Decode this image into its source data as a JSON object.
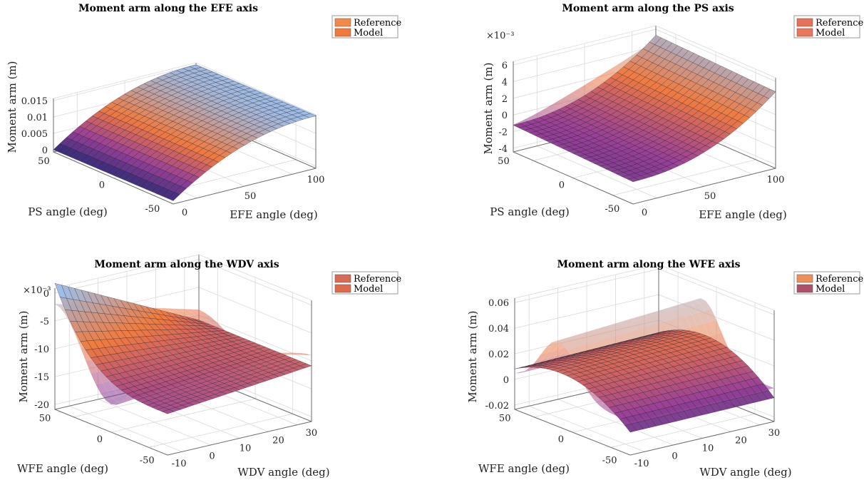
{
  "chart_data": [
    {
      "type": "surface",
      "title": "Moment arm along the EFE axis",
      "xlabel": "EFE angle (deg)",
      "ylabel": "PS angle (deg)",
      "zlabel": "Moment arm (m)",
      "x_ticks": [
        "0",
        "50",
        "100"
      ],
      "y_ticks": [
        "-50",
        "0",
        "50"
      ],
      "z_ticks": [
        "0",
        "0.005",
        "0.01",
        "0.015"
      ],
      "z_exponent": "",
      "xlim": [
        0,
        110
      ],
      "ylim": [
        -60,
        60
      ],
      "zlim": [
        0,
        0.016
      ],
      "grid": true,
      "legend": "top-right",
      "legend_entries": [
        "Reference",
        "Model"
      ],
      "series": [
        {
          "name": "Reference",
          "color": "#f08a4b",
          "shape": "efe_ref"
        },
        {
          "name": "Model",
          "color": "#ee7a3c",
          "shape": "efe_model"
        }
      ]
    },
    {
      "type": "surface",
      "title": "Moment arm along the PS axis",
      "xlabel": "EFE angle (deg)",
      "ylabel": "PS angle (deg)",
      "zlabel": "Moment arm (m)",
      "x_ticks": [
        "0",
        "50",
        "100"
      ],
      "y_ticks": [
        "-50",
        "0",
        "50"
      ],
      "z_ticks": [
        "-4",
        "-2",
        "0",
        "2",
        "4",
        "6"
      ],
      "z_exponent": "×10⁻³",
      "xlim": [
        0,
        110
      ],
      "ylim": [
        -60,
        60
      ],
      "zlim": [
        -4,
        7
      ],
      "grid": true,
      "legend": "top-right",
      "legend_entries": [
        "Reference",
        "Model"
      ],
      "series": [
        {
          "name": "Reference",
          "color": "#e5735c",
          "shape": "ps_ref"
        },
        {
          "name": "Model",
          "color": "#e8775e",
          "shape": "ps_model"
        }
      ]
    },
    {
      "type": "surface",
      "title": "Moment arm along the WDV axis",
      "xlabel": "WDV angle (deg)",
      "ylabel": "WFE angle (deg)",
      "zlabel": "Moment arm (m)",
      "x_ticks": [
        "-10",
        "0",
        "10",
        "20",
        "30"
      ],
      "y_ticks": [
        "-50",
        "0",
        "50"
      ],
      "z_ticks": [
        "-20",
        "-15",
        "-10",
        "-5",
        "0"
      ],
      "z_exponent": "×10⁻³",
      "xlim": [
        -12,
        32
      ],
      "ylim": [
        -60,
        60
      ],
      "zlim": [
        -21,
        4
      ],
      "grid": true,
      "legend": "top-right",
      "legend_entries": [
        "Reference",
        "Model"
      ],
      "series": [
        {
          "name": "Reference",
          "color": "#d96a55",
          "shape": "wdv_ref"
        },
        {
          "name": "Model",
          "color": "#e0694a",
          "shape": "wdv_model"
        }
      ]
    },
    {
      "type": "surface",
      "title": "Moment arm along the WFE axis",
      "xlabel": "WDV angle (deg)",
      "ylabel": "WFE angle (deg)",
      "zlabel": "Moment arm (m)",
      "x_ticks": [
        "-10",
        "0",
        "10",
        "20",
        "30"
      ],
      "y_ticks": [
        "-50",
        "0",
        "50"
      ],
      "z_ticks": [
        "-0.02",
        "0",
        "0.02",
        "0.04",
        "0.06"
      ],
      "z_exponent": "",
      "xlim": [
        -12,
        32
      ],
      "ylim": [
        -60,
        60
      ],
      "zlim": [
        -0.022,
        0.062
      ],
      "grid": true,
      "legend": "top-right",
      "legend_entries": [
        "Reference",
        "Model"
      ],
      "series": [
        {
          "name": "Reference",
          "color": "#ef8f5a",
          "shape": "wfe_ref"
        },
        {
          "name": "Model",
          "color": "#b04f6a",
          "shape": "wfe_model"
        }
      ]
    }
  ]
}
